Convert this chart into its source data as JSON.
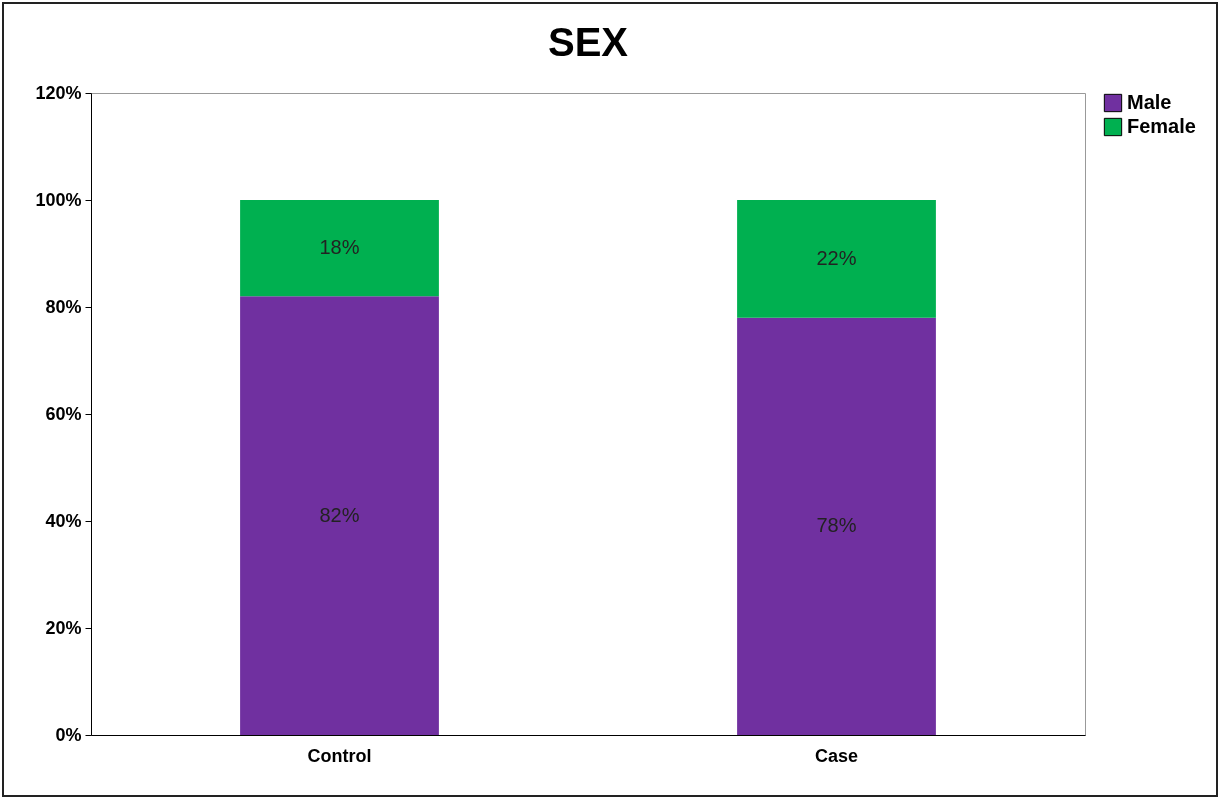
{
  "chart_data": {
    "type": "bar",
    "title": "SEX",
    "categories": [
      "Control",
      "Case"
    ],
    "stacked": true,
    "series": [
      {
        "name": "Male",
        "color": "#7030a0",
        "values": [
          82,
          78
        ],
        "value_labels": [
          "82%",
          "78%"
        ]
      },
      {
        "name": "Female",
        "color": "#00b050",
        "values": [
          18,
          22
        ],
        "value_labels": [
          "18%",
          "22%"
        ]
      }
    ],
    "ylim": [
      0,
      120
    ],
    "yticks": [
      {
        "value": 0,
        "label": "0%"
      },
      {
        "value": 20,
        "label": "20%"
      },
      {
        "value": 40,
        "label": "40%"
      },
      {
        "value": 60,
        "label": "60%"
      },
      {
        "value": 80,
        "label": "80%"
      },
      {
        "value": 100,
        "label": "100%"
      },
      {
        "value": 120,
        "label": "120%"
      }
    ],
    "legend": "right"
  }
}
